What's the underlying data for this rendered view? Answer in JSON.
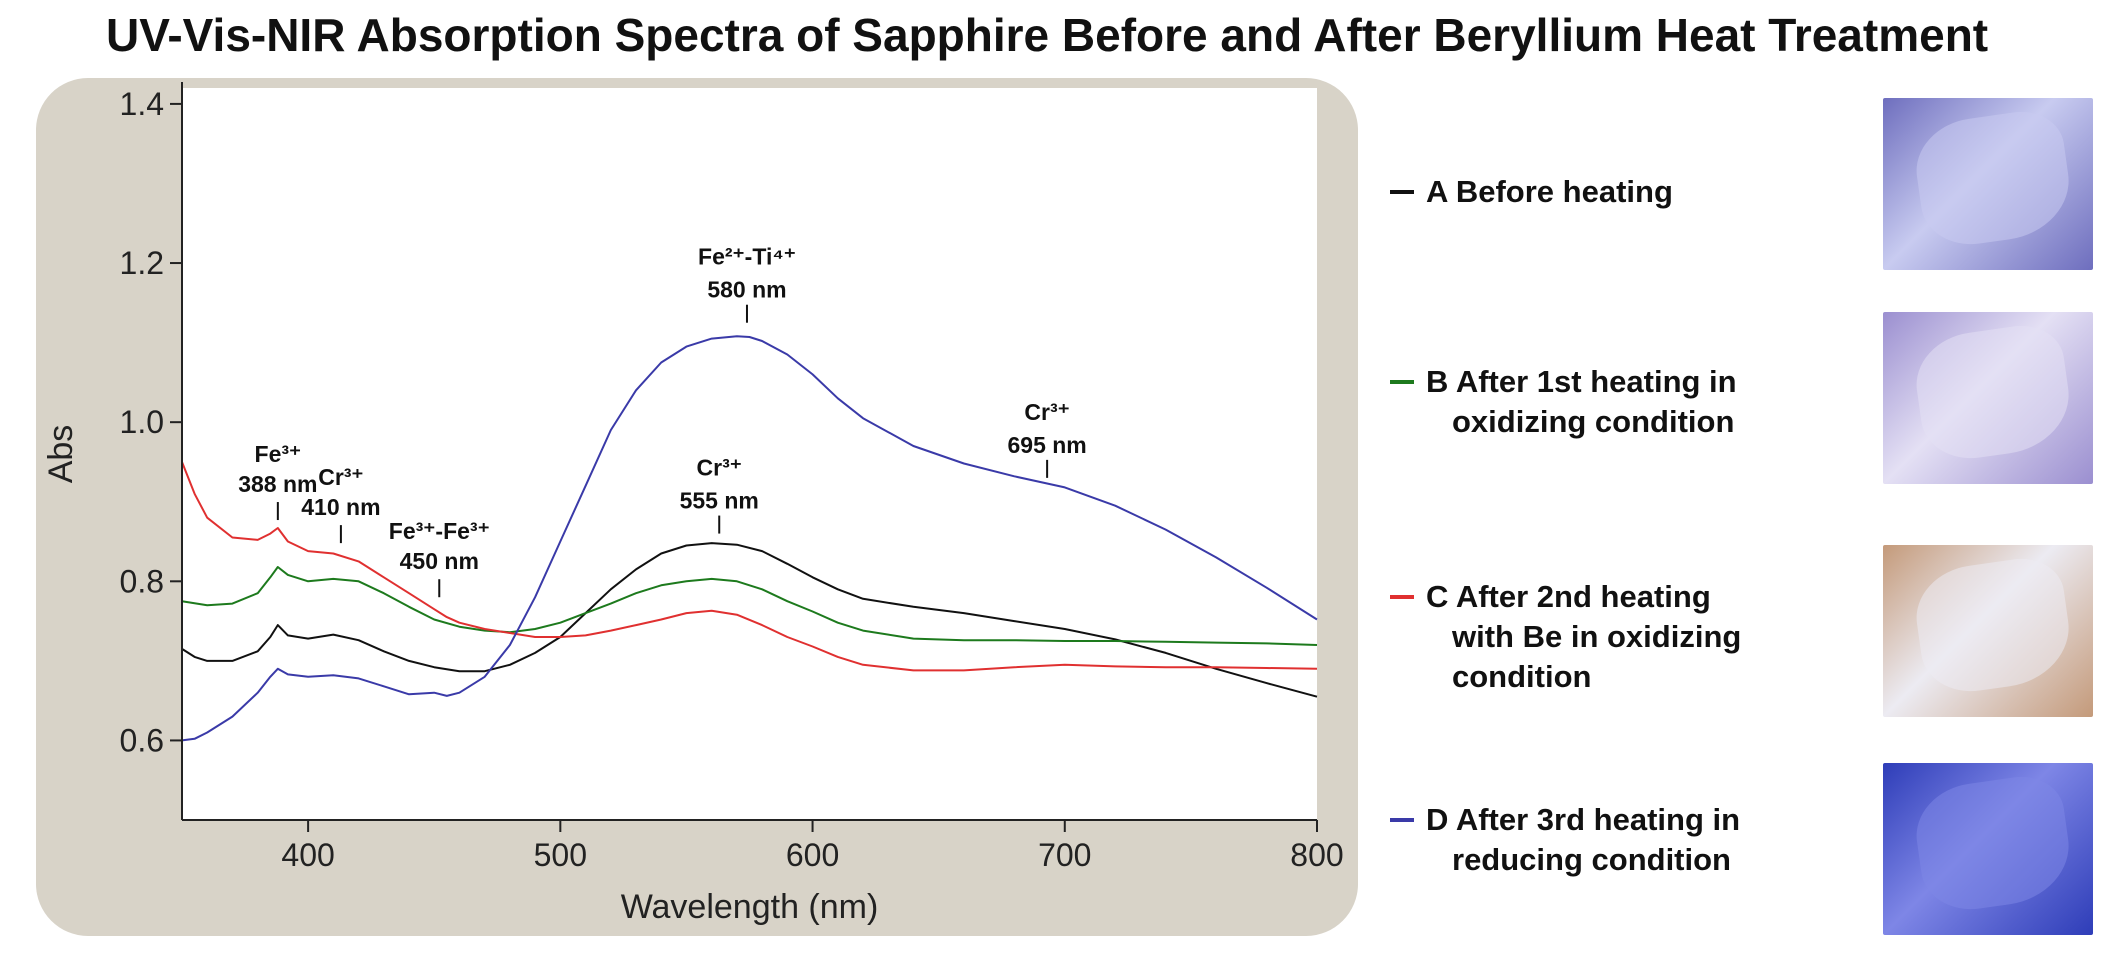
{
  "title": "UV-Vis-NIR Absorption Spectra of Sapphire Before and After Beryllium Heat Treatment",
  "colors": {
    "panel_bg": "#d8d3c8",
    "plot_bg": "#ffffff",
    "A": "#111111",
    "B": "#1d7a1d",
    "C": "#e03030",
    "D": "#3a3aa8"
  },
  "chart_data": {
    "type": "line",
    "xlabel": "Wavelength (nm)",
    "ylabel": "Abs",
    "xlim": [
      350,
      800
    ],
    "ylim": [
      0.5,
      1.42
    ],
    "xticks": [
      400,
      500,
      600,
      700,
      800
    ],
    "xtick_labels": [
      "400",
      "500",
      "600",
      "700",
      "800"
    ],
    "yticks": [
      0.6,
      0.8,
      1.0,
      1.2,
      1.4
    ],
    "ytick_labels": [
      "0.6",
      "0.8",
      "1.0",
      "1.2",
      "1.4"
    ],
    "legend_position": "right",
    "series": [
      {
        "key": "A",
        "name": "A Before heating",
        "x": [
          350,
          355,
          360,
          370,
          380,
          385,
          388,
          392,
          400,
          410,
          420,
          430,
          440,
          450,
          460,
          470,
          480,
          490,
          500,
          510,
          520,
          530,
          540,
          550,
          560,
          570,
          580,
          590,
          600,
          610,
          620,
          640,
          660,
          680,
          700,
          720,
          740,
          760,
          780,
          800
        ],
        "y": [
          0.715,
          0.705,
          0.7,
          0.7,
          0.712,
          0.73,
          0.745,
          0.732,
          0.728,
          0.733,
          0.726,
          0.712,
          0.7,
          0.692,
          0.687,
          0.687,
          0.695,
          0.71,
          0.73,
          0.76,
          0.79,
          0.815,
          0.835,
          0.845,
          0.848,
          0.846,
          0.838,
          0.822,
          0.805,
          0.79,
          0.778,
          0.768,
          0.76,
          0.75,
          0.74,
          0.727,
          0.71,
          0.69,
          0.672,
          0.655
        ]
      },
      {
        "key": "B",
        "name": "B After 1st heating in oxidizing condition",
        "x": [
          350,
          360,
          370,
          380,
          385,
          388,
          392,
          400,
          410,
          420,
          430,
          440,
          450,
          460,
          470,
          480,
          490,
          500,
          510,
          520,
          530,
          540,
          550,
          560,
          570,
          580,
          590,
          600,
          610,
          620,
          640,
          660,
          680,
          700,
          720,
          740,
          760,
          780,
          800
        ],
        "y": [
          0.775,
          0.77,
          0.772,
          0.785,
          0.805,
          0.818,
          0.808,
          0.8,
          0.803,
          0.8,
          0.785,
          0.768,
          0.752,
          0.743,
          0.738,
          0.736,
          0.74,
          0.748,
          0.76,
          0.772,
          0.785,
          0.795,
          0.8,
          0.803,
          0.8,
          0.79,
          0.775,
          0.762,
          0.748,
          0.738,
          0.728,
          0.726,
          0.726,
          0.725,
          0.725,
          0.724,
          0.723,
          0.722,
          0.72
        ]
      },
      {
        "key": "C",
        "name": "C After 2nd heating with Be in oxidizing condition",
        "x": [
          350,
          355,
          360,
          370,
          380,
          385,
          388,
          392,
          400,
          410,
          420,
          430,
          440,
          450,
          455,
          460,
          470,
          480,
          490,
          500,
          510,
          520,
          530,
          540,
          550,
          560,
          570,
          580,
          590,
          600,
          610,
          620,
          640,
          660,
          680,
          700,
          720,
          740,
          760,
          780,
          800
        ],
        "y": [
          0.95,
          0.91,
          0.88,
          0.855,
          0.852,
          0.86,
          0.867,
          0.85,
          0.838,
          0.835,
          0.825,
          0.805,
          0.785,
          0.765,
          0.755,
          0.748,
          0.74,
          0.735,
          0.73,
          0.73,
          0.732,
          0.738,
          0.745,
          0.752,
          0.76,
          0.763,
          0.758,
          0.745,
          0.73,
          0.718,
          0.705,
          0.695,
          0.688,
          0.688,
          0.692,
          0.695,
          0.693,
          0.692,
          0.692,
          0.691,
          0.69
        ]
      },
      {
        "key": "D",
        "name": "D After 3rd heating in reducing condition",
        "x": [
          350,
          355,
          360,
          370,
          380,
          385,
          388,
          392,
          400,
          410,
          420,
          430,
          440,
          450,
          455,
          460,
          470,
          480,
          490,
          500,
          510,
          520,
          530,
          540,
          550,
          560,
          570,
          575,
          580,
          590,
          600,
          610,
          620,
          640,
          660,
          680,
          700,
          720,
          740,
          760,
          780,
          800
        ],
        "y": [
          0.6,
          0.602,
          0.61,
          0.63,
          0.66,
          0.68,
          0.69,
          0.683,
          0.68,
          0.682,
          0.678,
          0.668,
          0.658,
          0.66,
          0.656,
          0.66,
          0.68,
          0.72,
          0.78,
          0.85,
          0.92,
          0.99,
          1.04,
          1.075,
          1.095,
          1.105,
          1.108,
          1.107,
          1.102,
          1.085,
          1.06,
          1.03,
          1.005,
          0.97,
          0.948,
          0.932,
          0.918,
          0.895,
          0.865,
          0.83,
          0.792,
          0.752
        ]
      }
    ],
    "annotations": [
      {
        "lines": [
          "Fe³⁺",
          "388 nm"
        ],
        "x": 388,
        "y": 0.877,
        "size": "small"
      },
      {
        "lines": [
          "Cr³⁺",
          "410 nm"
        ],
        "x": 413,
        "y": 0.848,
        "size": "small"
      },
      {
        "lines": [
          "Fe³⁺-Fe³⁺",
          "450 nm"
        ],
        "x": 452,
        "y": 0.78,
        "size": "small"
      },
      {
        "lines": [
          "Cr³⁺",
          "555 nm"
        ],
        "x": 563,
        "y": 0.86,
        "size": "large"
      },
      {
        "lines": [
          "Fe²⁺-Ti⁴⁺",
          "580 nm"
        ],
        "x": 574,
        "y": 1.125,
        "size": "large"
      },
      {
        "lines": [
          "Cr³⁺",
          "695 nm"
        ],
        "x": 693,
        "y": 0.93,
        "size": "large"
      }
    ]
  },
  "legend": [
    {
      "key": "A",
      "line1": "A Before heating",
      "line2": ""
    },
    {
      "key": "B",
      "line1": "B After 1st heating in",
      "line2": "oxidizing condition"
    },
    {
      "key": "C",
      "line1": "C After 2nd heating",
      "line2": "with Be in oxidizing",
      "line3": "condition"
    },
    {
      "key": "D",
      "line1": "D After 3rd heating in",
      "line2": "reducing condition"
    }
  ],
  "samples": [
    {
      "key": "A",
      "color": "#6e6ebe",
      "highlight": "#c8cbf0"
    },
    {
      "key": "B",
      "color": "#9b8fd0",
      "highlight": "#e4e0f4"
    },
    {
      "key": "C",
      "color": "#c49a7a",
      "highlight": "#ecebf2"
    },
    {
      "key": "D",
      "color": "#2e3db8",
      "highlight": "#7e86e6"
    }
  ]
}
